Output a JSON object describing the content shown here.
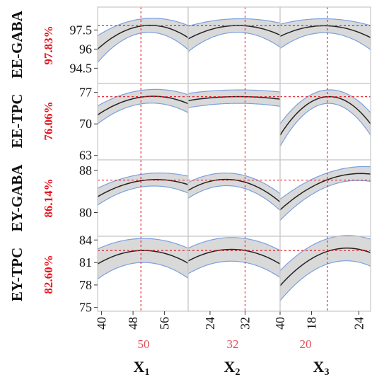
{
  "colors": {
    "band_fill": "#d9d9d9",
    "band_edge": "#7aa0e0",
    "curve": "#222222",
    "crosshair": "#e8141e",
    "response_value": "#e8141e",
    "factor_setting": "#e0505a",
    "panel_border": "#c8c8c8"
  },
  "factors": [
    {
      "letter": "X",
      "subscript": "1",
      "setting": "50",
      "ticks": [
        "40",
        "48",
        "56"
      ]
    },
    {
      "letter": "X",
      "subscript": "2",
      "setting": "32",
      "ticks": [
        "24",
        "32",
        "40"
      ]
    },
    {
      "letter": "X",
      "subscript": "3",
      "setting": "20",
      "ticks": [
        "18",
        "24"
      ]
    }
  ],
  "responses": [
    {
      "name": "EE-GABA",
      "value": "97.83%",
      "ticks": [
        "97.5",
        "96",
        "94.5"
      ]
    },
    {
      "name": "EE-TPC",
      "value": "76.06%",
      "ticks": [
        "77",
        "70",
        "63"
      ]
    },
    {
      "name": "EY-GABA",
      "value": "86.14%",
      "ticks": [
        "88",
        "80"
      ]
    },
    {
      "name": "EY-TPC",
      "value": "82.60%",
      "ticks": [
        "84",
        "81",
        "78",
        "75"
      ]
    }
  ],
  "chart_data": {
    "type": "line",
    "subtype": "prediction profiler",
    "x_factors": [
      {
        "label": "X1",
        "range": [
          39,
          62
        ],
        "current": 50,
        "ticks": [
          40,
          48,
          56
        ]
      },
      {
        "label": "X2",
        "range": [
          19,
          40
        ],
        "current": 32,
        "ticks": [
          24,
          32,
          40
        ]
      },
      {
        "label": "X3",
        "range": [
          14,
          25.5
        ],
        "current": 20,
        "ticks": [
          18,
          24
        ]
      }
    ],
    "y_responses": [
      {
        "label": "EE-GABA",
        "current": 97.83,
        "ylim": [
          93.3,
          99.3
        ],
        "ticks": [
          94.5,
          96,
          97.5
        ]
      },
      {
        "label": "EE-TPC",
        "current": 76.06,
        "ylim": [
          62,
          79
        ],
        "ticks": [
          63,
          70,
          77
        ]
      },
      {
        "label": "EY-GABA",
        "current": 86.14,
        "ylim": [
          75.5,
          90
        ],
        "ticks": [
          80,
          88
        ]
      },
      {
        "label": "EY-TPC",
        "current": 82.6,
        "ylim": [
          74.5,
          84.5
        ],
        "ticks": [
          75,
          78,
          81,
          84
        ]
      }
    ],
    "panels": [
      [
        {
          "x": [
            39,
            50.5,
            62
          ],
          "y": [
            96.0,
            97.83,
            96.9
          ],
          "band": [
            1.05,
            0.55,
            0.95
          ]
        },
        {
          "x": [
            19,
            32,
            40
          ],
          "y": [
            96.8,
            97.83,
            97.1
          ],
          "band": [
            1.0,
            0.55,
            0.95
          ]
        },
        {
          "x": [
            14,
            20,
            25.5
          ],
          "y": [
            97.0,
            97.83,
            96.9
          ],
          "band": [
            0.95,
            0.55,
            0.95
          ]
        }
      ],
      [
        {
          "x": [
            39,
            51,
            62
          ],
          "y": [
            72.0,
            76.06,
            74.5
          ],
          "band": [
            2.0,
            1.5,
            2.0
          ]
        },
        {
          "x": [
            19,
            32,
            40
          ],
          "y": [
            75.2,
            76.06,
            75.5
          ],
          "band": [
            1.6,
            1.5,
            1.6
          ]
        },
        {
          "x": [
            14,
            20,
            25.5
          ],
          "y": [
            67.5,
            76.06,
            70.0
          ],
          "band": [
            2.5,
            1.5,
            2.5
          ]
        }
      ],
      [
        {
          "x": [
            39,
            51,
            62
          ],
          "y": [
            83.0,
            86.14,
            85.3
          ],
          "band": [
            1.6,
            1.2,
            1.6
          ]
        },
        {
          "x": [
            19,
            30,
            40
          ],
          "y": [
            84.2,
            86.14,
            82.0
          ],
          "band": [
            1.5,
            1.2,
            1.6
          ]
        },
        {
          "x": [
            14,
            24,
            25.5
          ],
          "y": [
            80.5,
            87.4,
            87.3
          ],
          "band": [
            2.0,
            1.3,
            1.4
          ]
        }
      ],
      [
        {
          "x": [
            39,
            50.5,
            62
          ],
          "y": [
            80.8,
            82.6,
            80.9
          ],
          "band": [
            2.0,
            1.6,
            2.0
          ]
        },
        {
          "x": [
            19,
            32,
            40
          ],
          "y": [
            81.2,
            82.6,
            80.8
          ],
          "band": [
            1.7,
            1.6,
            1.8
          ]
        },
        {
          "x": [
            14,
            23,
            25.5
          ],
          "y": [
            77.9,
            82.9,
            82.3
          ],
          "band": [
            2.0,
            1.7,
            1.8
          ]
        }
      ]
    ]
  }
}
